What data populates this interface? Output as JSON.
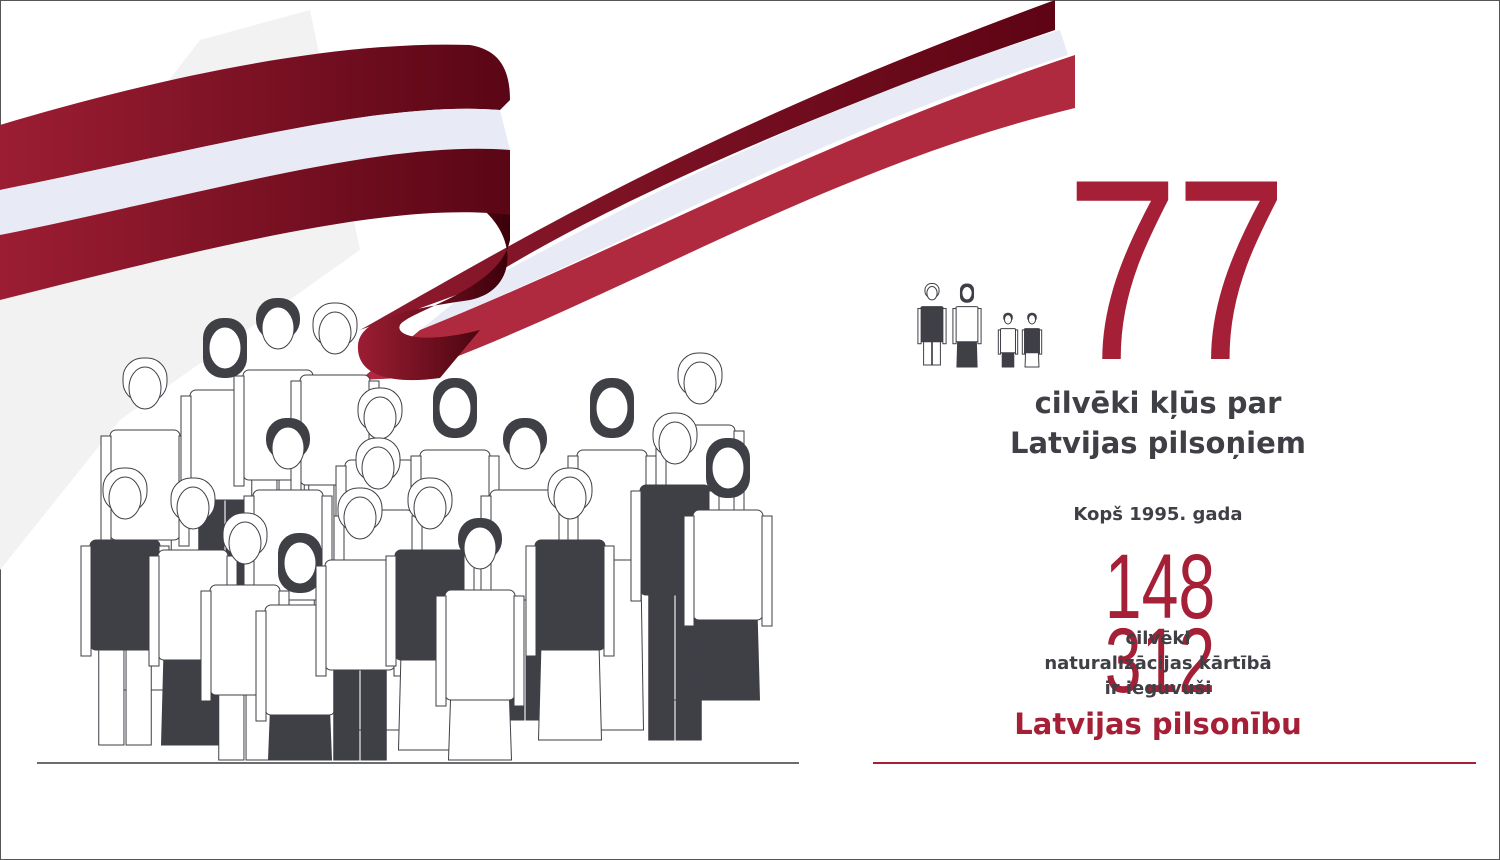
{
  "headline": {
    "number": "77",
    "line1": "cilvēki kļūs par",
    "line2": "Latvijas pilsoņiem"
  },
  "since": "Kopš 1995. gada",
  "total": {
    "number": "148 312",
    "line1": "cilvēki",
    "line2": "naturalizācijas kārtībā",
    "line3": "ir ieguvuši",
    "emphasis": "Latvijas pilsonību"
  },
  "colors": {
    "accent": "#a51f36",
    "flag_dark": "#6e0a1c",
    "flag_white": "#e8eaf6",
    "text": "#3f3f46",
    "figure_dark": "#3f3f46"
  },
  "icons": [
    "latvian-flag-ribbon",
    "crowd-illustration",
    "family-icon"
  ]
}
